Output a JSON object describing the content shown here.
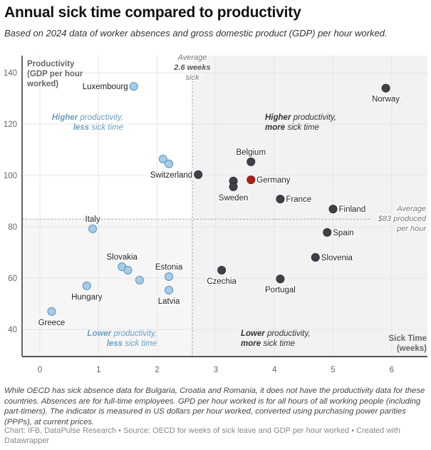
{
  "header": {
    "title": "Annual sick time compared to productivity",
    "subtitle": "Based on 2024 data of worker absences and gross domestic product (GDP) per hour worked."
  },
  "footer": {
    "notes": "While OECD has sick absence data for Bulgaria, Croatia and Romania, it does not have the productivity data for these countries. Absences are for full-time employees. GPD per hour worked is for all hours of all working people (including part-timers). The indicator is measured in US dollars per hour worked, converted using purchasing power parities (PPPs), at current prices.",
    "source": "Chart: IFB, DataPulse Research • Source: OECD for weeks of sick leave and GDP per hour worked • Created with Datawrapper"
  },
  "chart_data": {
    "type": "scatter",
    "title": "Annual sick time compared to productivity",
    "xlabel": [
      "Sick Time",
      "(weeks)"
    ],
    "ylabel": [
      "Productivity",
      "(GDP per hour",
      "worked)"
    ],
    "xlim": [
      -0.3,
      6.6
    ],
    "ylim": [
      32,
      142
    ],
    "xticks": [
      0,
      1,
      2,
      3,
      4,
      5,
      6
    ],
    "yticks": [
      40,
      60,
      80,
      100,
      120,
      140
    ],
    "grid": true,
    "colors": {
      "low_sick": "#a4cde9",
      "low_sick_stroke": "#5b8fb5",
      "high_sick": "#3c4247",
      "highlight": "#b11f1a",
      "quad_blue": "#6a9ec2",
      "quad_dark": "#333333"
    },
    "reference_lines": {
      "x": {
        "value": 2.6,
        "label": [
          "Average",
          "2.6 weeks",
          "sick"
        ]
      },
      "y": {
        "value": 83,
        "label": [
          "Average",
          "$83 produced",
          "per hour"
        ]
      }
    },
    "quadrant_labels": [
      {
        "id": "top-left",
        "bold1": "Higher",
        "rest1": " productivity,",
        "bold2": "less",
        "rest2": " sick time"
      },
      {
        "id": "top-right",
        "bold1": "Higher",
        "rest1": " productivity,",
        "bold2": "more",
        "rest2": " sick time"
      },
      {
        "id": "bottom-left",
        "bold1": "Lower",
        "rest1": " productivity,",
        "bold2": "less",
        "rest2": " sick time"
      },
      {
        "id": "bottom-right",
        "bold1": "Lower",
        "rest1": " productivity,",
        "bold2": "more",
        "rest2": " sick time"
      }
    ],
    "points": [
      {
        "label": "Luxembourg",
        "x": 1.6,
        "y": 134.7,
        "group": "low_sick",
        "label_pos": "left"
      },
      {
        "label": "Norway",
        "x": 5.9,
        "y": 134.0,
        "group": "high_sick",
        "label_pos": "below"
      },
      {
        "label": "",
        "x": 2.1,
        "y": 106.4,
        "group": "low_sick",
        "label_pos": "none"
      },
      {
        "label": "",
        "x": 2.2,
        "y": 104.5,
        "group": "low_sick",
        "label_pos": "none"
      },
      {
        "label": "Switzerland",
        "x": 2.7,
        "y": 100.3,
        "group": "high_sick",
        "label_pos": "left"
      },
      {
        "label": "Belgium",
        "x": 3.6,
        "y": 105.3,
        "group": "high_sick",
        "label_pos": "above"
      },
      {
        "label": "",
        "x": 3.3,
        "y": 97.8,
        "group": "high_sick",
        "label_pos": "none"
      },
      {
        "label": "Sweden",
        "x": 3.3,
        "y": 95.6,
        "group": "high_sick",
        "label_pos": "below"
      },
      {
        "label": "Germany",
        "x": 3.6,
        "y": 98.3,
        "group": "highlight",
        "label_pos": "right"
      },
      {
        "label": "France",
        "x": 4.1,
        "y": 90.8,
        "group": "high_sick",
        "label_pos": "right"
      },
      {
        "label": "Finland",
        "x": 5.0,
        "y": 86.9,
        "group": "high_sick",
        "label_pos": "right"
      },
      {
        "label": "Spain",
        "x": 4.9,
        "y": 77.8,
        "group": "high_sick",
        "label_pos": "right"
      },
      {
        "label": "Slovenia",
        "x": 4.7,
        "y": 68.1,
        "group": "high_sick",
        "label_pos": "right"
      },
      {
        "label": "Czechia",
        "x": 3.1,
        "y": 63.1,
        "group": "high_sick",
        "label_pos": "below"
      },
      {
        "label": "Portugal",
        "x": 4.1,
        "y": 59.7,
        "group": "high_sick",
        "label_pos": "below"
      },
      {
        "label": "Italy",
        "x": 0.9,
        "y": 79.2,
        "group": "low_sick",
        "label_pos": "above"
      },
      {
        "label": "Slovakia",
        "x": 1.4,
        "y": 64.4,
        "group": "low_sick",
        "label_pos": "above"
      },
      {
        "label": "",
        "x": 1.5,
        "y": 63.1,
        "group": "low_sick",
        "label_pos": "none"
      },
      {
        "label": "",
        "x": 1.7,
        "y": 59.2,
        "group": "low_sick",
        "label_pos": "none"
      },
      {
        "label": "Estonia",
        "x": 2.2,
        "y": 60.6,
        "group": "low_sick",
        "label_pos": "above"
      },
      {
        "label": "Latvia",
        "x": 2.2,
        "y": 55.3,
        "group": "low_sick",
        "label_pos": "below"
      },
      {
        "label": "Hungary",
        "x": 0.8,
        "y": 57.0,
        "group": "low_sick",
        "label_pos": "below"
      },
      {
        "label": "Greece",
        "x": 0.2,
        "y": 47.0,
        "group": "low_sick",
        "label_pos": "below"
      }
    ]
  }
}
